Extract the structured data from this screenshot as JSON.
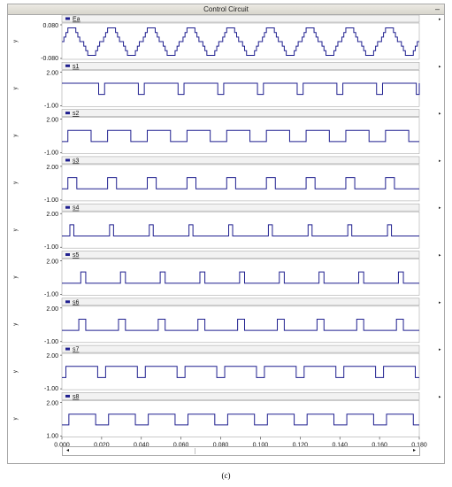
{
  "window": {
    "title": "Control Circuit",
    "minimize_label": "–"
  },
  "caption": "(c)",
  "colors": {
    "trace": "#1f1f8f",
    "legend_marker": "#1f1f8f",
    "frame": "#a8a8a8"
  },
  "chart_data": {
    "type": "line",
    "xlim": [
      0,
      0.18
    ],
    "x_ticks": [
      "0.000",
      "0.020",
      "0.040",
      "0.060",
      "0.080",
      "0.100",
      "0.120",
      "0.140",
      "0.160",
      "0.180"
    ],
    "period": 0.02,
    "panels": [
      {
        "name": "Ea",
        "ylabel": "y",
        "yticks": [
          "0.080",
          "-0.080"
        ],
        "ylim": [
          -0.08,
          0.08
        ],
        "kind": "staircase",
        "amplitude": 0.065
      },
      {
        "name": "s1",
        "ylabel": "y",
        "yticks": [
          "2.00",
          "-1.00"
        ],
        "ylim": [
          -1,
          2
        ],
        "kind": "pulse",
        "high": 1.0,
        "low": 0.0,
        "pulses": [
          [
            0.0,
            0.0185
          ],
          [
            0.0015,
            0.02
          ]
        ],
        "pattern": "low-short",
        "low_start": 0.0185,
        "low_width": 0.003
      },
      {
        "name": "s2",
        "ylabel": "y",
        "yticks": [
          "2.00",
          "-1.00"
        ],
        "ylim": [
          -1,
          2
        ],
        "kind": "pulse",
        "high": 1.0,
        "low": 0.0,
        "pattern": "duty",
        "on_start": 0.003,
        "on_width": 0.0117
      },
      {
        "name": "s3",
        "ylabel": "y",
        "yticks": [
          "2.00",
          "-1.00"
        ],
        "ylim": [
          -1,
          2
        ],
        "kind": "pulse",
        "high": 1.0,
        "low": 0.0,
        "pattern": "duty",
        "on_start": 0.003,
        "on_width": 0.0045
      },
      {
        "name": "s4",
        "ylabel": "y",
        "yticks": [
          "2.00",
          "-1.00"
        ],
        "ylim": [
          -1,
          2
        ],
        "kind": "pulse",
        "high": 1.0,
        "low": 0.0,
        "pattern": "duty",
        "on_start": 0.004,
        "on_width": 0.002
      },
      {
        "name": "s5",
        "ylabel": "y",
        "yticks": [
          "2.00",
          "-1.00"
        ],
        "ylim": [
          -1,
          2
        ],
        "kind": "pulse",
        "high": 1.0,
        "low": 0.0,
        "pattern": "duty",
        "on_start": 0.0095,
        "on_width": 0.0025
      },
      {
        "name": "s6",
        "ylabel": "y",
        "yticks": [
          "2.00",
          "-1.00"
        ],
        "ylim": [
          -1,
          2
        ],
        "kind": "pulse",
        "high": 1.0,
        "low": 0.0,
        "pattern": "duty",
        "on_start": 0.0085,
        "on_width": 0.0035
      },
      {
        "name": "s7",
        "ylabel": "y",
        "yticks": [
          "2.00",
          "-1.00"
        ],
        "ylim": [
          -1,
          2
        ],
        "kind": "pulse",
        "high": 1.0,
        "low": 0.0,
        "pattern": "duty",
        "on_start": 0.002,
        "on_width": 0.016
      },
      {
        "name": "s8",
        "ylabel": "y",
        "yticks": [
          "2.00",
          "1.00"
        ],
        "ylim": [
          1,
          2
        ],
        "kind": "pulse",
        "high": 1.65,
        "low": 1.33,
        "pattern": "duty",
        "on_start": 0.0035,
        "on_width": 0.0135
      }
    ]
  }
}
